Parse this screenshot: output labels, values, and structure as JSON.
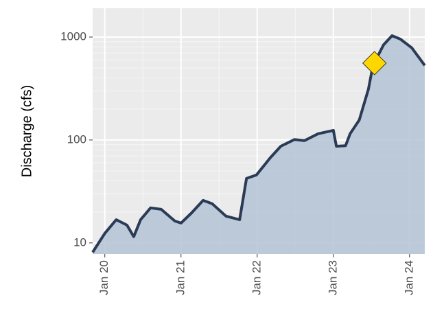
{
  "chart_data": {
    "type": "area",
    "y_label": "Discharge (cfs)",
    "log_y": true,
    "grid": true,
    "x": [
      19.84,
      20.0,
      20.15,
      20.29,
      20.38,
      20.47,
      20.6,
      20.74,
      20.92,
      21.0,
      21.14,
      21.29,
      21.41,
      21.59,
      21.77,
      21.86,
      21.99,
      22.17,
      22.31,
      22.49,
      22.62,
      22.8,
      23.0,
      23.04,
      23.16,
      23.22,
      23.34,
      23.46,
      23.52,
      23.66,
      23.77,
      23.88,
      24.03,
      24.2
    ],
    "values": [
      8.1,
      12.4,
      16.8,
      14.9,
      11.5,
      16.8,
      21.9,
      21.2,
      16.3,
      15.6,
      19.6,
      25.9,
      24.0,
      18.2,
      16.8,
      42.3,
      45.7,
      67,
      87,
      101,
      98.5,
      115,
      124,
      87,
      88,
      115,
      156,
      312,
      530,
      843,
      1030,
      955,
      785,
      530
    ],
    "color": "#2b3a55",
    "fill": "#b3c3d6",
    "marker": {
      "x": 23.54,
      "value": 558,
      "color": "#ffd700"
    },
    "xlim": [
      19.84,
      24.2
    ],
    "xticks": [
      {
        "value": 20,
        "label": "Jan 20"
      },
      {
        "value": 21,
        "label": "Jan 21"
      },
      {
        "value": 22,
        "label": "Jan 22"
      },
      {
        "value": 23,
        "label": "Jan 23"
      },
      {
        "value": 24,
        "label": "Jan 24"
      }
    ],
    "x_minor_ticks": [
      20.5,
      21.5,
      22.5,
      23.5
    ],
    "ylim": [
      7.8,
      1905
    ],
    "yticks": [
      10,
      100,
      1000
    ],
    "y_minor_ticks": [
      20,
      30,
      40,
      50,
      60,
      70,
      80,
      90,
      200,
      300,
      400,
      500,
      600,
      700,
      800,
      900
    ]
  }
}
